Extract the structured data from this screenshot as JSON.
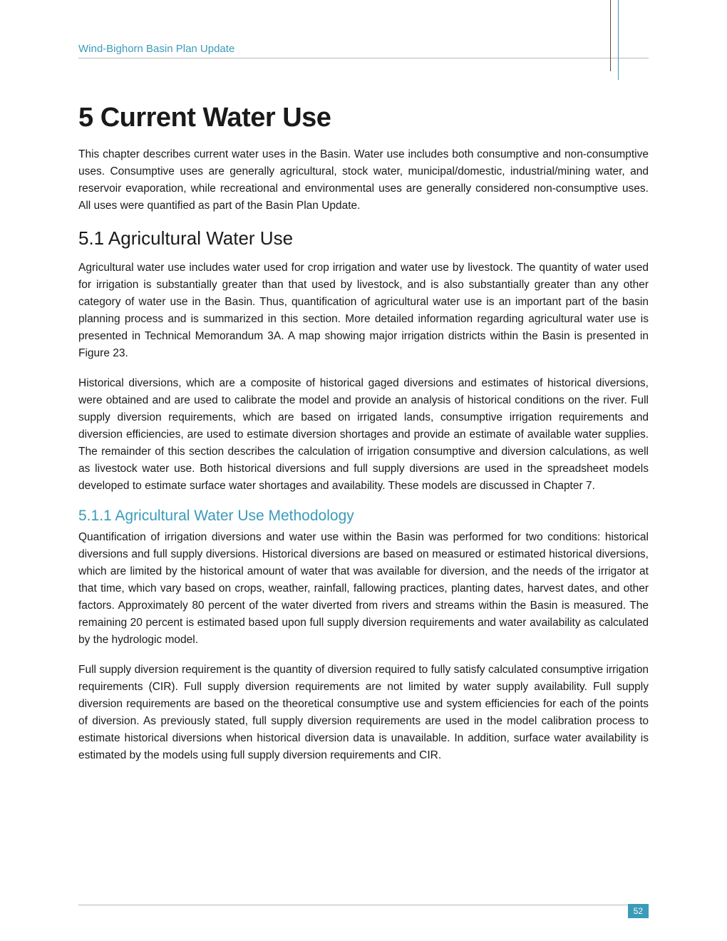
{
  "header": {
    "title": "Wind-Bighorn Basin Plan Update"
  },
  "chapter": {
    "title": "5  Current Water Use",
    "intro": "This chapter describes current water uses in the Basin. Water use includes both consumptive and non-consumptive uses.  Consumptive uses are generally agricultural, stock water, municipal/domestic, industrial/mining water, and reservoir evaporation, while recreational and environmental uses are generally considered non-consumptive uses.  All uses were quantified as part of the Basin Plan Update."
  },
  "section": {
    "heading": "5.1  Agricultural Water Use",
    "para1": "Agricultural water use includes water used for crop irrigation and water use by livestock.  The quantity of water used for irrigation is substantially greater than that used by livestock, and is also substantially greater than any other category of water use in the Basin.  Thus, quantification of agricultural water use is an important part of the basin planning process and is summarized in this section.  More detailed information regarding agricultural water use is presented in Technical Memorandum 3A.  A map showing major irrigation districts within the Basin is presented in Figure 23.",
    "para2": "Historical diversions, which are a composite of historical gaged diversions and estimates of historical diversions, were obtained and are used to calibrate the model and provide an analysis of historical conditions on the river.  Full supply diversion requirements, which are based on irrigated lands, consumptive irrigation requirements and diversion efficiencies, are used to estimate diversion shortages and provide an estimate of available water supplies.  The remainder of this section describes the calculation of irrigation consumptive and diversion calculations, as well as livestock water use. Both historical diversions and full supply diversions are used in the spreadsheet models developed to estimate surface water shortages and availability.  These models are discussed in Chapter 7."
  },
  "subsection": {
    "heading": "5.1.1  Agricultural Water Use Methodology",
    "para1": "Quantification of irrigation diversions and water use within the Basin was performed for two conditions:  historical diversions and full supply diversions.  Historical diversions are based on measured or estimated historical diversions, which are limited by the historical amount of water that was available for diversion, and the needs of the irrigator at that time, which vary based on crops, weather, rainfall, fallowing practices, planting dates, harvest dates, and other factors.  Approximately 80 percent of the water diverted from rivers and streams within the Basin is measured.  The remaining 20 percent is estimated based upon full supply diversion requirements and water availability as calculated by the hydrologic model.",
    "para2": "Full supply diversion requirement is the quantity of diversion required to fully satisfy calculated consumptive irrigation requirements (CIR).  Full supply diversion requirements are not limited by water supply availability.  Full supply diversion requirements are based on the theoretical consumptive use and system efficiencies for each of the points of diversion.  As previously stated, full supply diversion requirements are used in the model calibration process to estimate historical diversions when historical diversion data is unavailable.  In addition, surface water availability is estimated by the models using full supply diversion requirements and CIR."
  },
  "footer": {
    "page_number": "52"
  },
  "colors": {
    "accent": "#3b9bb8",
    "text": "#1a1a1a",
    "line_gray": "#b8b8b8",
    "line_brown": "#5a4a3a",
    "background": "#ffffff"
  },
  "typography": {
    "header_fontsize": 15,
    "chapter_title_fontsize": 38,
    "section_heading_fontsize": 26,
    "subsection_heading_fontsize": 21,
    "body_fontsize": 15.5,
    "page_number_fontsize": 12
  }
}
